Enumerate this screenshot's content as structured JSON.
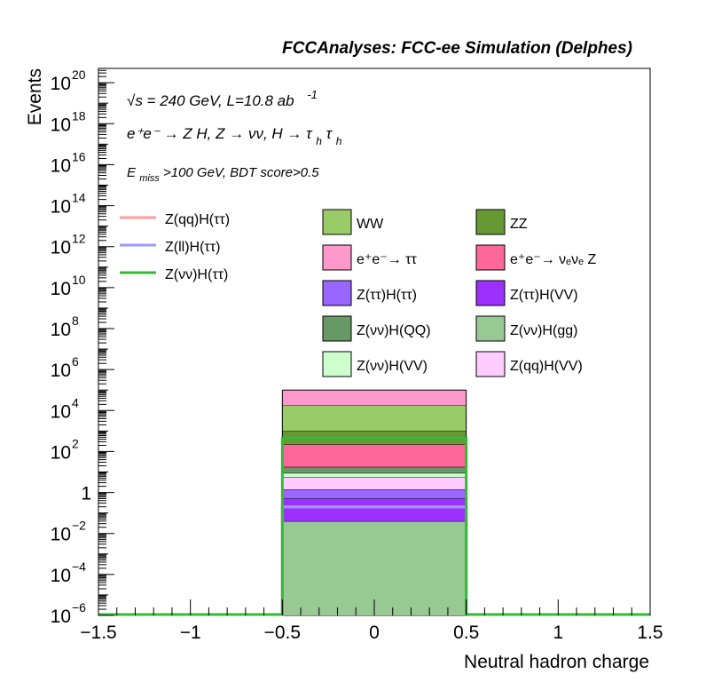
{
  "chart_data": {
    "type": "bar",
    "title": "FCCAnalyses: FCC-ee Simulation (Delphes)",
    "xlabel": "Neutral hadron charge",
    "ylabel": "Events",
    "y_scale": "log",
    "xlim": [
      -1.5,
      1.5
    ],
    "ylim_log10": [
      -6,
      20.7
    ],
    "x_ticks": [
      "−1.5",
      "−1",
      "−0.5",
      "0",
      "0.5",
      "1",
      "1.5"
    ],
    "y_ticks": [
      {
        "base": "10",
        "exp": "20"
      },
      {
        "base": "10",
        "exp": "18"
      },
      {
        "base": "10",
        "exp": "16"
      },
      {
        "base": "10",
        "exp": "14"
      },
      {
        "base": "10",
        "exp": "12"
      },
      {
        "base": "10",
        "exp": "10"
      },
      {
        "base": "10",
        "exp": "8"
      },
      {
        "base": "10",
        "exp": "6"
      },
      {
        "base": "10",
        "exp": "4"
      },
      {
        "base": "10",
        "exp": "2"
      },
      {
        "base": "1",
        "exp": ""
      },
      {
        "base": "10",
        "exp": "−2"
      },
      {
        "base": "10",
        "exp": "−4"
      },
      {
        "base": "10",
        "exp": "−6"
      }
    ],
    "bin": {
      "x_low": -0.5,
      "x_high": 0.5
    },
    "stack_layers": [
      {
        "name": "Z(νν)H(gg)",
        "color": "#98c994",
        "log10_bottom": -6,
        "log10_top": -1.4
      },
      {
        "name": "Z(ττ)H(VV)",
        "color": "#9b30ff",
        "log10_bottom": -1.4,
        "log10_top": -0.3
      },
      {
        "name": "Z(ττ)H(ττ)",
        "color": "#9966ff",
        "log10_bottom": -0.3,
        "log10_top": 0.15
      },
      {
        "name": "Z(qq)H(VV)",
        "color": "#ffccff",
        "log10_bottom": 0.15,
        "log10_top": 0.75
      },
      {
        "name": "Z(νν)H(VV)",
        "color": "#ccffcc",
        "log10_bottom": 0.75,
        "log10_top": 0.95
      },
      {
        "name": "Z(νν)H(QQ)",
        "color": "#669966",
        "log10_bottom": 0.95,
        "log10_top": 1.25
      },
      {
        "name": "e⁺e⁻→ νₑνₑ Z",
        "color": "#ff6699",
        "log10_bottom": 1.25,
        "log10_top": 2.35
      },
      {
        "name": "ZZ",
        "color": "#669933",
        "log10_bottom": 2.35,
        "log10_top": 3.0
      },
      {
        "name": "WW",
        "color": "#99cc66",
        "log10_bottom": 3.0,
        "log10_top": 4.25
      },
      {
        "name": "e⁺e⁻→ ττ",
        "color": "#ff99cc",
        "log10_bottom": 4.25,
        "log10_top": 5.0
      }
    ],
    "signal_lines": [
      {
        "name": "Z(qq)H(ττ)",
        "color": "#ff9999",
        "log10_value": -0.7
      },
      {
        "name": "Z(ll)H(ττ)",
        "color": "#9999ff",
        "log10_value": -0.7
      },
      {
        "name": "Z(νν)H(ττ)",
        "color": "#33bb33",
        "log10_value": 2.65
      }
    ],
    "legend_signals": [
      {
        "label": "Z(qq)H(ττ)",
        "color": "#ff9999"
      },
      {
        "label": "Z(ll)H(ττ)",
        "color": "#9999ff"
      },
      {
        "label": "Z(νν)H(ττ)",
        "color": "#33bb33"
      }
    ],
    "legend_backgrounds": [
      {
        "label": "WW",
        "color": "#99cc66"
      },
      {
        "label": "ZZ",
        "color": "#669933"
      },
      {
        "label": "e⁺e⁻→ ττ",
        "color": "#ff99cc"
      },
      {
        "label": "e⁺e⁻→ νₑνₑ Z",
        "color": "#ff6699"
      },
      {
        "label": "Z(ττ)H(ττ)",
        "color": "#9966ff"
      },
      {
        "label": "Z(ττ)H(VV)",
        "color": "#9b30ff"
      },
      {
        "label": "Z(νν)H(QQ)",
        "color": "#669966"
      },
      {
        "label": "Z(νν)H(gg)",
        "color": "#98c994"
      },
      {
        "label": "Z(νν)H(VV)",
        "color": "#ccffcc"
      },
      {
        "label": "Z(qq)H(VV)",
        "color": "#ffccff"
      }
    ],
    "annotations": {
      "energy": "√s = 240 GeV, L=10.8 ab",
      "energy_sup": "-1",
      "process": "e⁺e⁻ → Z H, Z  → νν, H → τ",
      "process_sub1": "h",
      "process_tau2": "τ",
      "process_sub2": "h",
      "cut_E": "E",
      "cut_sub": "miss",
      "cut_rest": ">100 GeV, BDT score>0.5"
    }
  }
}
